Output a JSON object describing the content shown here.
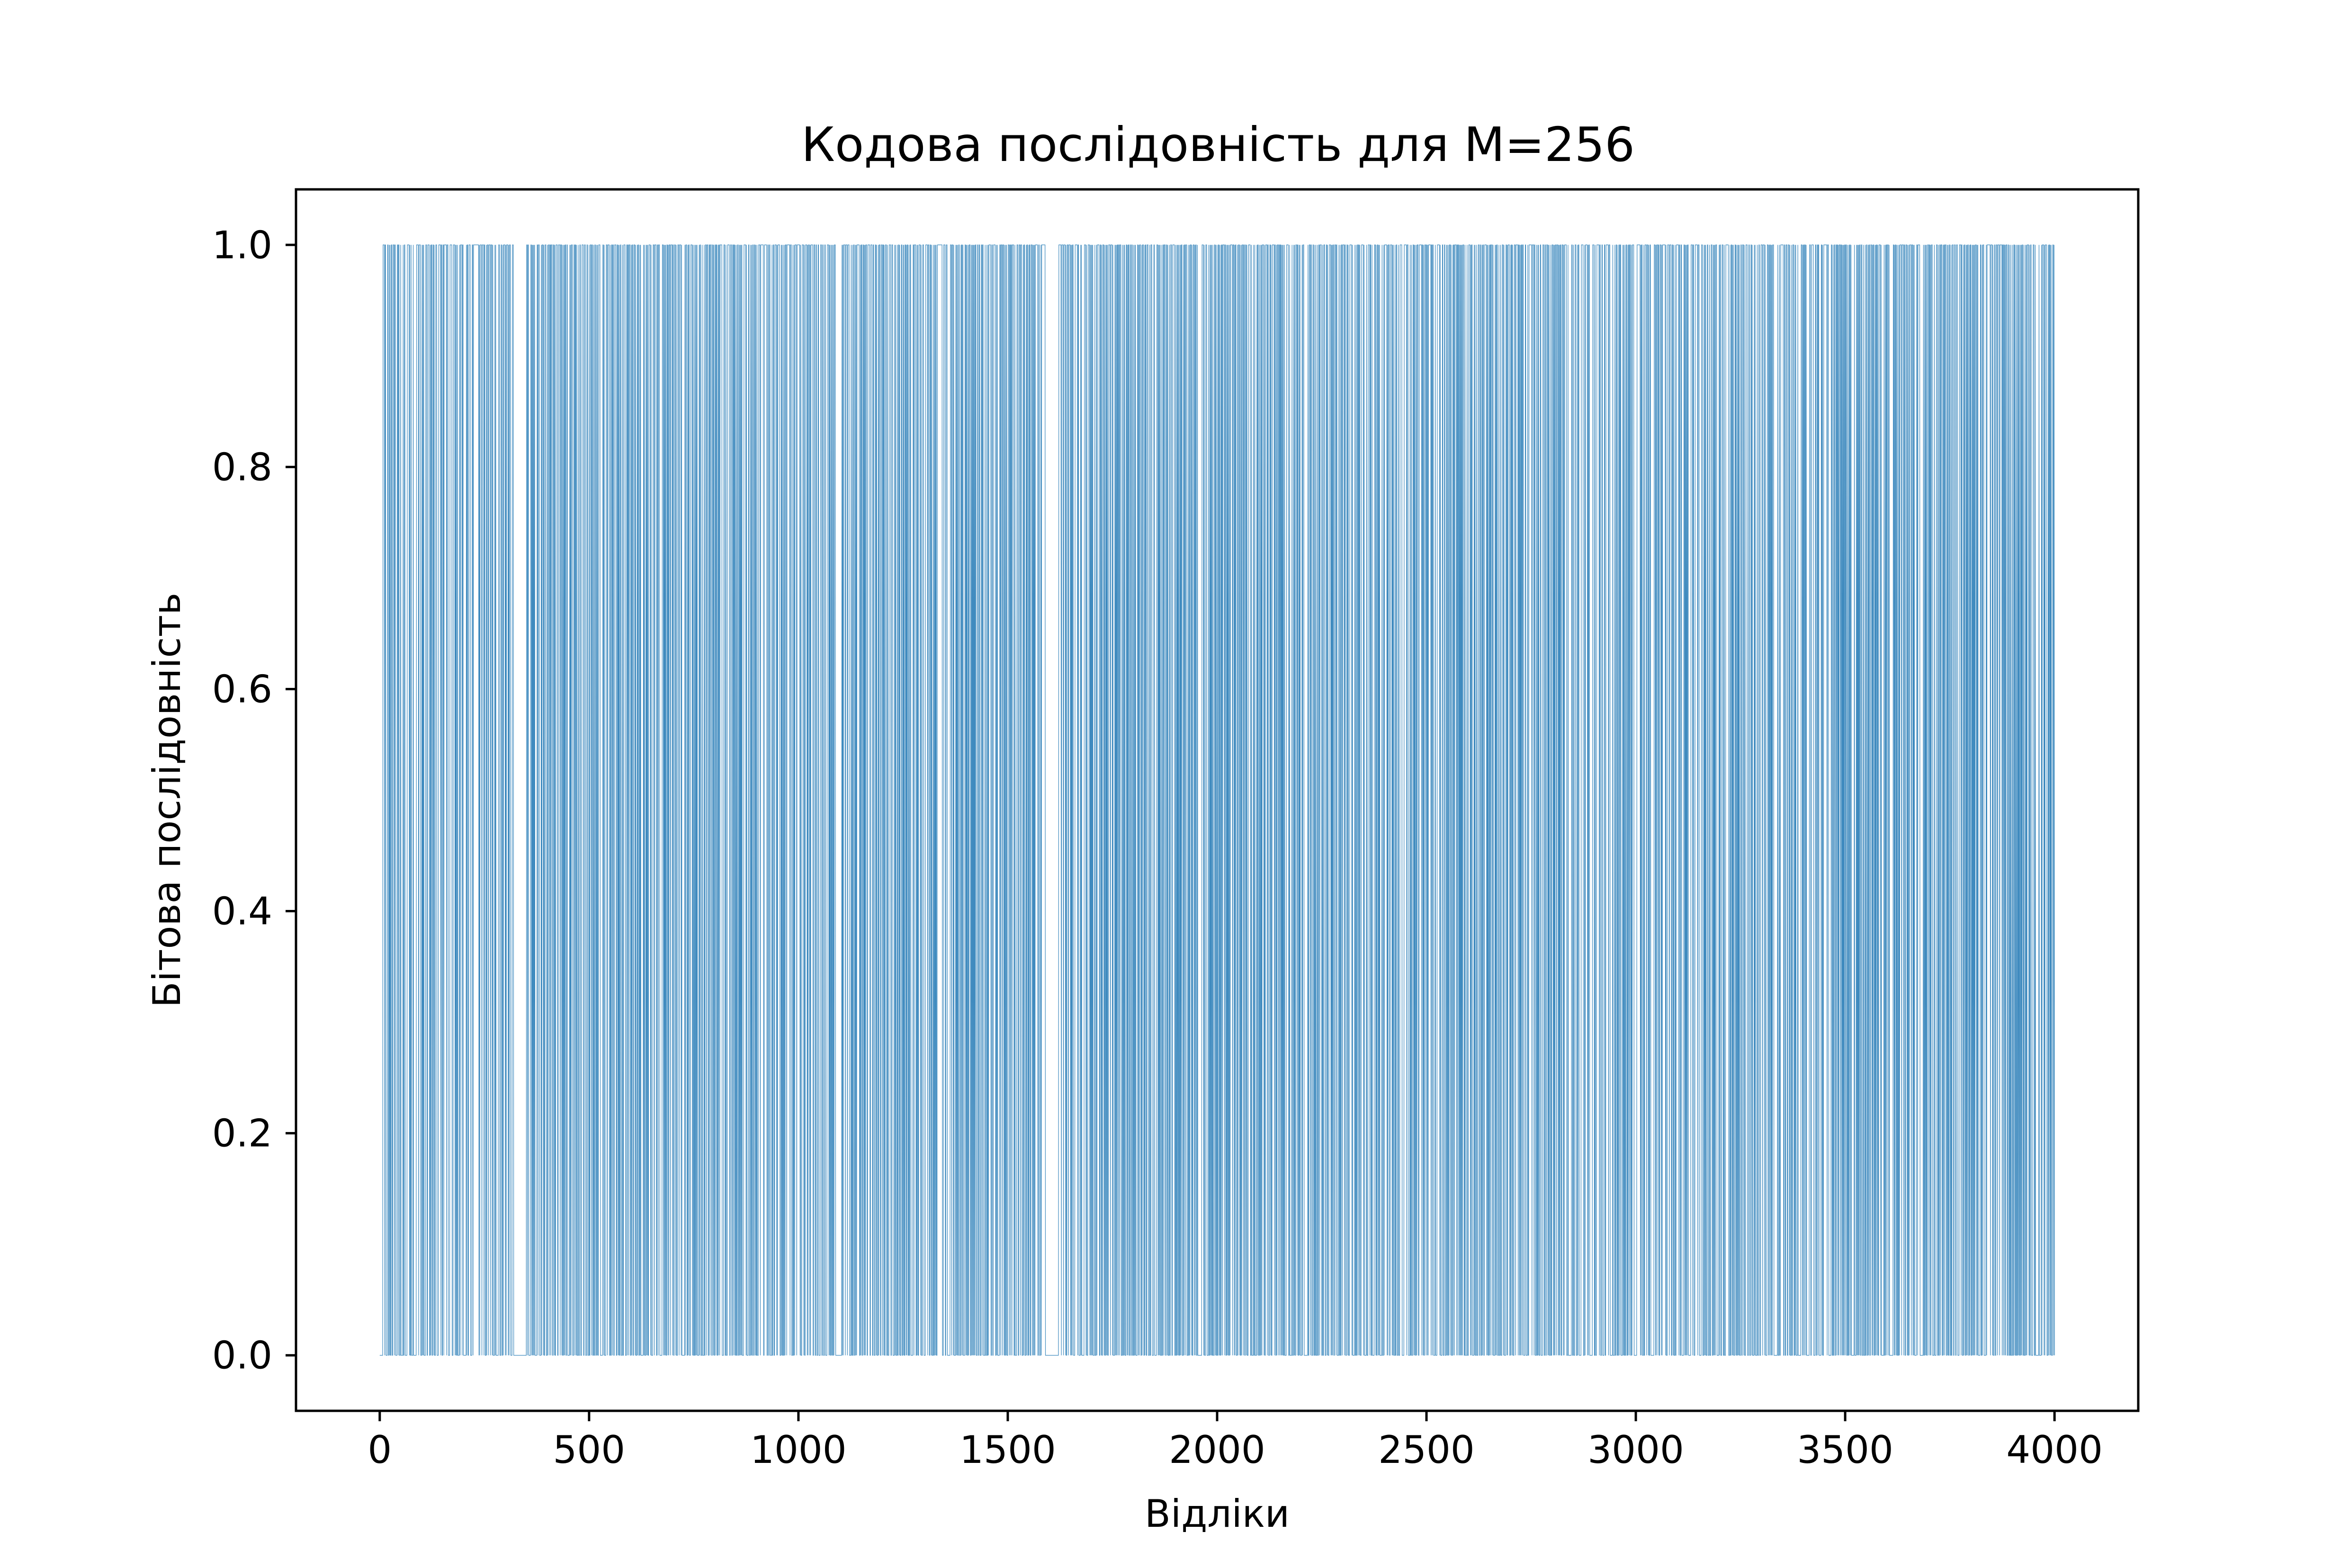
{
  "chart_data": {
    "type": "line",
    "title": "Кодова послідовність для M=256",
    "xlabel": "Відліки",
    "ylabel": "Бітова послідовність",
    "xlim": [
      -200,
      4200
    ],
    "ylim": [
      -0.05,
      1.05
    ],
    "xticks": [
      0,
      500,
      1000,
      1500,
      2000,
      2500,
      3000,
      3500,
      4000
    ],
    "yticks": [
      0.0,
      0.2,
      0.4,
      0.6,
      0.8,
      1.0
    ],
    "xtick_labels": [
      "0",
      "500",
      "1000",
      "1500",
      "2000",
      "2500",
      "3000",
      "3500",
      "4000"
    ],
    "ytick_labels": [
      "0.0",
      "0.2",
      "0.4",
      "0.6",
      "0.8",
      "1.0"
    ],
    "grid": false,
    "series": [
      {
        "values_description_note": "",
        "x_range": [
          0,
          4000
        ],
        "values": [
          0,
          1,
          0,
          1,
          1,
          0,
          0,
          1,
          0,
          1,
          1,
          1,
          0,
          0,
          1,
          0,
          1,
          0,
          1,
          1,
          0,
          1,
          0,
          0,
          1,
          1,
          0,
          1,
          0,
          1,
          0,
          0
        ],
        "color": "#1f77b4"
      }
    ]
  }
}
